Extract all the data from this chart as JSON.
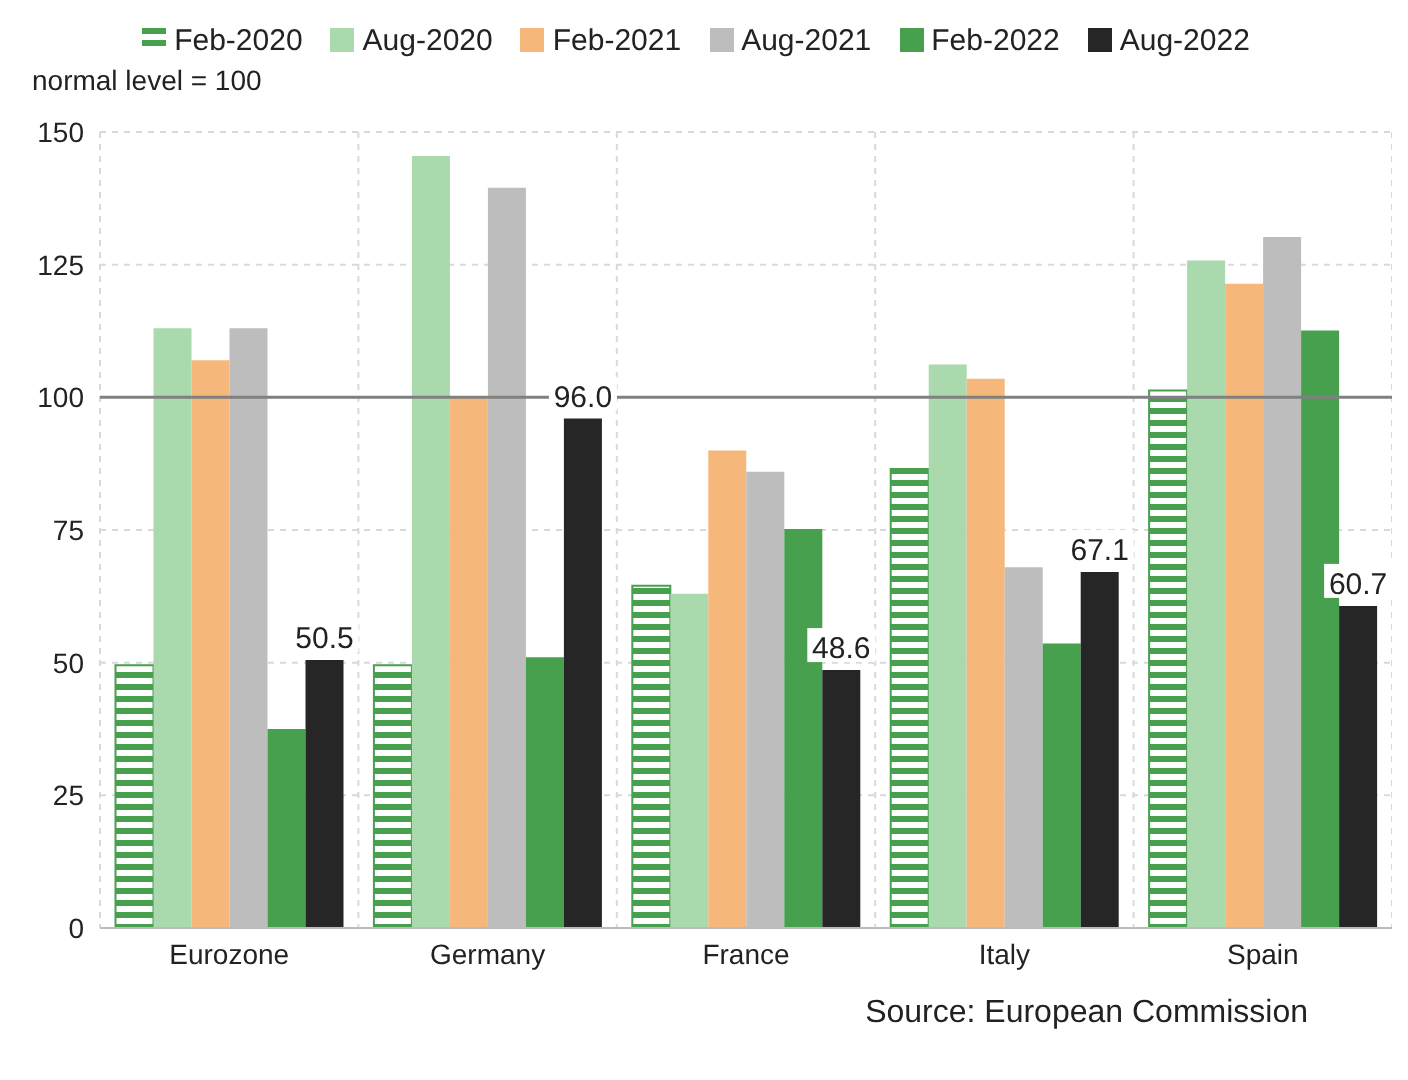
{
  "chart_data": {
    "type": "bar",
    "ylabel": "normal level = 100",
    "categories": [
      "Eurozone",
      "Germany",
      "France",
      "Italy",
      "Spain"
    ],
    "series": [
      {
        "name": "Feb-2020",
        "color": "#46a04e",
        "values": [
          49.5,
          49.5,
          64.5,
          86.5,
          101.3
        ]
      },
      {
        "name": "Aug-2020",
        "color": "#a9d9ad",
        "values": [
          113,
          145.5,
          63,
          106.2,
          125.8
        ]
      },
      {
        "name": "Feb-2021",
        "color": "#f5b87a",
        "values": [
          107,
          100,
          90,
          103.5,
          121.4
        ]
      },
      {
        "name": "Aug-2021",
        "color": "#bdbdbd",
        "values": [
          113,
          139.5,
          86,
          68,
          130.2
        ]
      },
      {
        "name": "Feb-2022",
        "color": "#46a04e",
        "values": [
          37.5,
          51,
          75.2,
          53.6,
          112.6
        ]
      },
      {
        "name": "Aug-2022",
        "color": "#262626",
        "values": [
          50.5,
          96.0,
          48.6,
          67.1,
          60.7
        ],
        "value_labels": [
          "50.5",
          "96.0",
          "48.6",
          "67.1",
          "60.7"
        ]
      }
    ],
    "ylim": [
      0,
      150
    ],
    "yticks": [
      0,
      25,
      50,
      75,
      100,
      125,
      150
    ],
    "grid": true,
    "legend": "top",
    "ref_lines": [
      {
        "axis": "y",
        "value": 100,
        "color": "#808080"
      }
    ],
    "annotations": [
      "Source: European Commission"
    ]
  }
}
